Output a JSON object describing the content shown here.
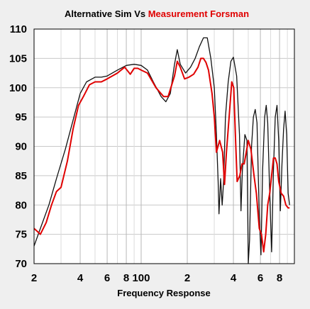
{
  "chart_data": {
    "type": "line",
    "title_parts": [
      {
        "text": "Alternative Sim  Vs  ",
        "color": "#000000"
      },
      {
        "text": "Measurement Forsman",
        "color": "#e00000"
      }
    ],
    "xlabel": "Frequency Response",
    "ylabel": "",
    "x_scale": "log",
    "xlim": [
      20,
      1000
    ],
    "ylim": [
      70,
      110
    ],
    "grid": true,
    "x_tick_labels": [
      {
        "value": 20,
        "label": "2"
      },
      {
        "value": 40,
        "label": "4"
      },
      {
        "value": 60,
        "label": "6"
      },
      {
        "value": 80,
        "label": "8"
      },
      {
        "value": 100,
        "label": "100"
      },
      {
        "value": 200,
        "label": "2"
      },
      {
        "value": 400,
        "label": "4"
      },
      {
        "value": 600,
        "label": "6"
      },
      {
        "value": 800,
        "label": "8"
      }
    ],
    "x_minor_gridlines": [
      30,
      50,
      70,
      90,
      300,
      500,
      700,
      900
    ],
    "y_ticks": [
      70,
      75,
      80,
      85,
      90,
      95,
      100,
      105,
      110
    ],
    "series": [
      {
        "color": "#111111",
        "points": [
          [
            20,
            73
          ],
          [
            22,
            76
          ],
          [
            25,
            80
          ],
          [
            28,
            84.5
          ],
          [
            32,
            89.5
          ],
          [
            36,
            94.5
          ],
          [
            40,
            99
          ],
          [
            44,
            101
          ],
          [
            50,
            101.8
          ],
          [
            55,
            101.8
          ],
          [
            60,
            102
          ],
          [
            70,
            103
          ],
          [
            80,
            103.8
          ],
          [
            90,
            104
          ],
          [
            100,
            103.8
          ],
          [
            110,
            103
          ],
          [
            120,
            101
          ],
          [
            135,
            98.5
          ],
          [
            145,
            97.6
          ],
          [
            155,
            99
          ],
          [
            165,
            104
          ],
          [
            172,
            106.5
          ],
          [
            180,
            104
          ],
          [
            195,
            102.5
          ],
          [
            210,
            103.5
          ],
          [
            225,
            105
          ],
          [
            240,
            107
          ],
          [
            255,
            108.5
          ],
          [
            270,
            108.5
          ],
          [
            285,
            105
          ],
          [
            300,
            100
          ],
          [
            310,
            92
          ],
          [
            318,
            84
          ],
          [
            322,
            78.5
          ],
          [
            330,
            84.5
          ],
          [
            338,
            80
          ],
          [
            345,
            84
          ],
          [
            355,
            95
          ],
          [
            370,
            101
          ],
          [
            385,
            104.5
          ],
          [
            400,
            105.2
          ],
          [
            420,
            102
          ],
          [
            438,
            92
          ],
          [
            448,
            79
          ],
          [
            458,
            86
          ],
          [
            475,
            92
          ],
          [
            490,
            91
          ],
          [
            500,
            70
          ],
          [
            510,
            74
          ],
          [
            525,
            90
          ],
          [
            540,
            95
          ],
          [
            555,
            96.3
          ],
          [
            570,
            94
          ],
          [
            590,
            78
          ],
          [
            605,
            71.5
          ],
          [
            620,
            86
          ],
          [
            640,
            95
          ],
          [
            655,
            97
          ],
          [
            670,
            94
          ],
          [
            690,
            82
          ],
          [
            710,
            72
          ],
          [
            730,
            86
          ],
          [
            750,
            95
          ],
          [
            770,
            97
          ],
          [
            790,
            91
          ],
          [
            810,
            79
          ],
          [
            830,
            87
          ],
          [
            850,
            93
          ],
          [
            870,
            96
          ],
          [
            890,
            92
          ],
          [
            910,
            82
          ],
          [
            930,
            80
          ]
        ]
      },
      {
        "color": "#e00000",
        "points": [
          [
            20,
            76
          ],
          [
            21,
            75.5
          ],
          [
            22,
            75
          ],
          [
            24,
            77
          ],
          [
            26,
            80
          ],
          [
            28,
            82.3
          ],
          [
            30,
            83
          ],
          [
            33,
            87.5
          ],
          [
            36,
            93
          ],
          [
            39,
            97
          ],
          [
            42,
            98.5
          ],
          [
            46,
            100.5
          ],
          [
            50,
            101
          ],
          [
            55,
            101
          ],
          [
            60,
            101.5
          ],
          [
            70,
            102.5
          ],
          [
            78,
            103.5
          ],
          [
            85,
            102.3
          ],
          [
            90,
            103.3
          ],
          [
            95,
            103.3
          ],
          [
            100,
            103
          ],
          [
            110,
            102.5
          ],
          [
            125,
            100
          ],
          [
            140,
            98.5
          ],
          [
            150,
            98.5
          ],
          [
            165,
            102
          ],
          [
            172,
            104.5
          ],
          [
            180,
            103.5
          ],
          [
            192,
            101.5
          ],
          [
            205,
            101.8
          ],
          [
            220,
            102.3
          ],
          [
            235,
            103.5
          ],
          [
            245,
            105
          ],
          [
            255,
            105
          ],
          [
            265,
            104.3
          ],
          [
            275,
            103
          ],
          [
            290,
            99
          ],
          [
            300,
            95
          ],
          [
            310,
            89
          ],
          [
            325,
            91
          ],
          [
            340,
            89
          ],
          [
            350,
            83.5
          ],
          [
            360,
            89
          ],
          [
            375,
            95
          ],
          [
            390,
            101
          ],
          [
            402,
            100
          ],
          [
            412,
            92
          ],
          [
            423,
            84
          ],
          [
            440,
            85
          ],
          [
            455,
            87
          ],
          [
            470,
            87
          ],
          [
            485,
            89
          ],
          [
            500,
            91
          ],
          [
            520,
            89.5
          ],
          [
            545,
            85
          ],
          [
            565,
            82
          ],
          [
            590,
            76
          ],
          [
            610,
            75
          ],
          [
            630,
            72
          ],
          [
            650,
            75
          ],
          [
            670,
            80
          ],
          [
            690,
            82
          ],
          [
            710,
            85
          ],
          [
            730,
            88
          ],
          [
            750,
            88
          ],
          [
            770,
            87
          ],
          [
            790,
            84
          ],
          [
            820,
            82
          ],
          [
            850,
            81.5
          ],
          [
            880,
            80
          ],
          [
            910,
            79.5
          ],
          [
            930,
            79.5
          ]
        ]
      }
    ]
  }
}
